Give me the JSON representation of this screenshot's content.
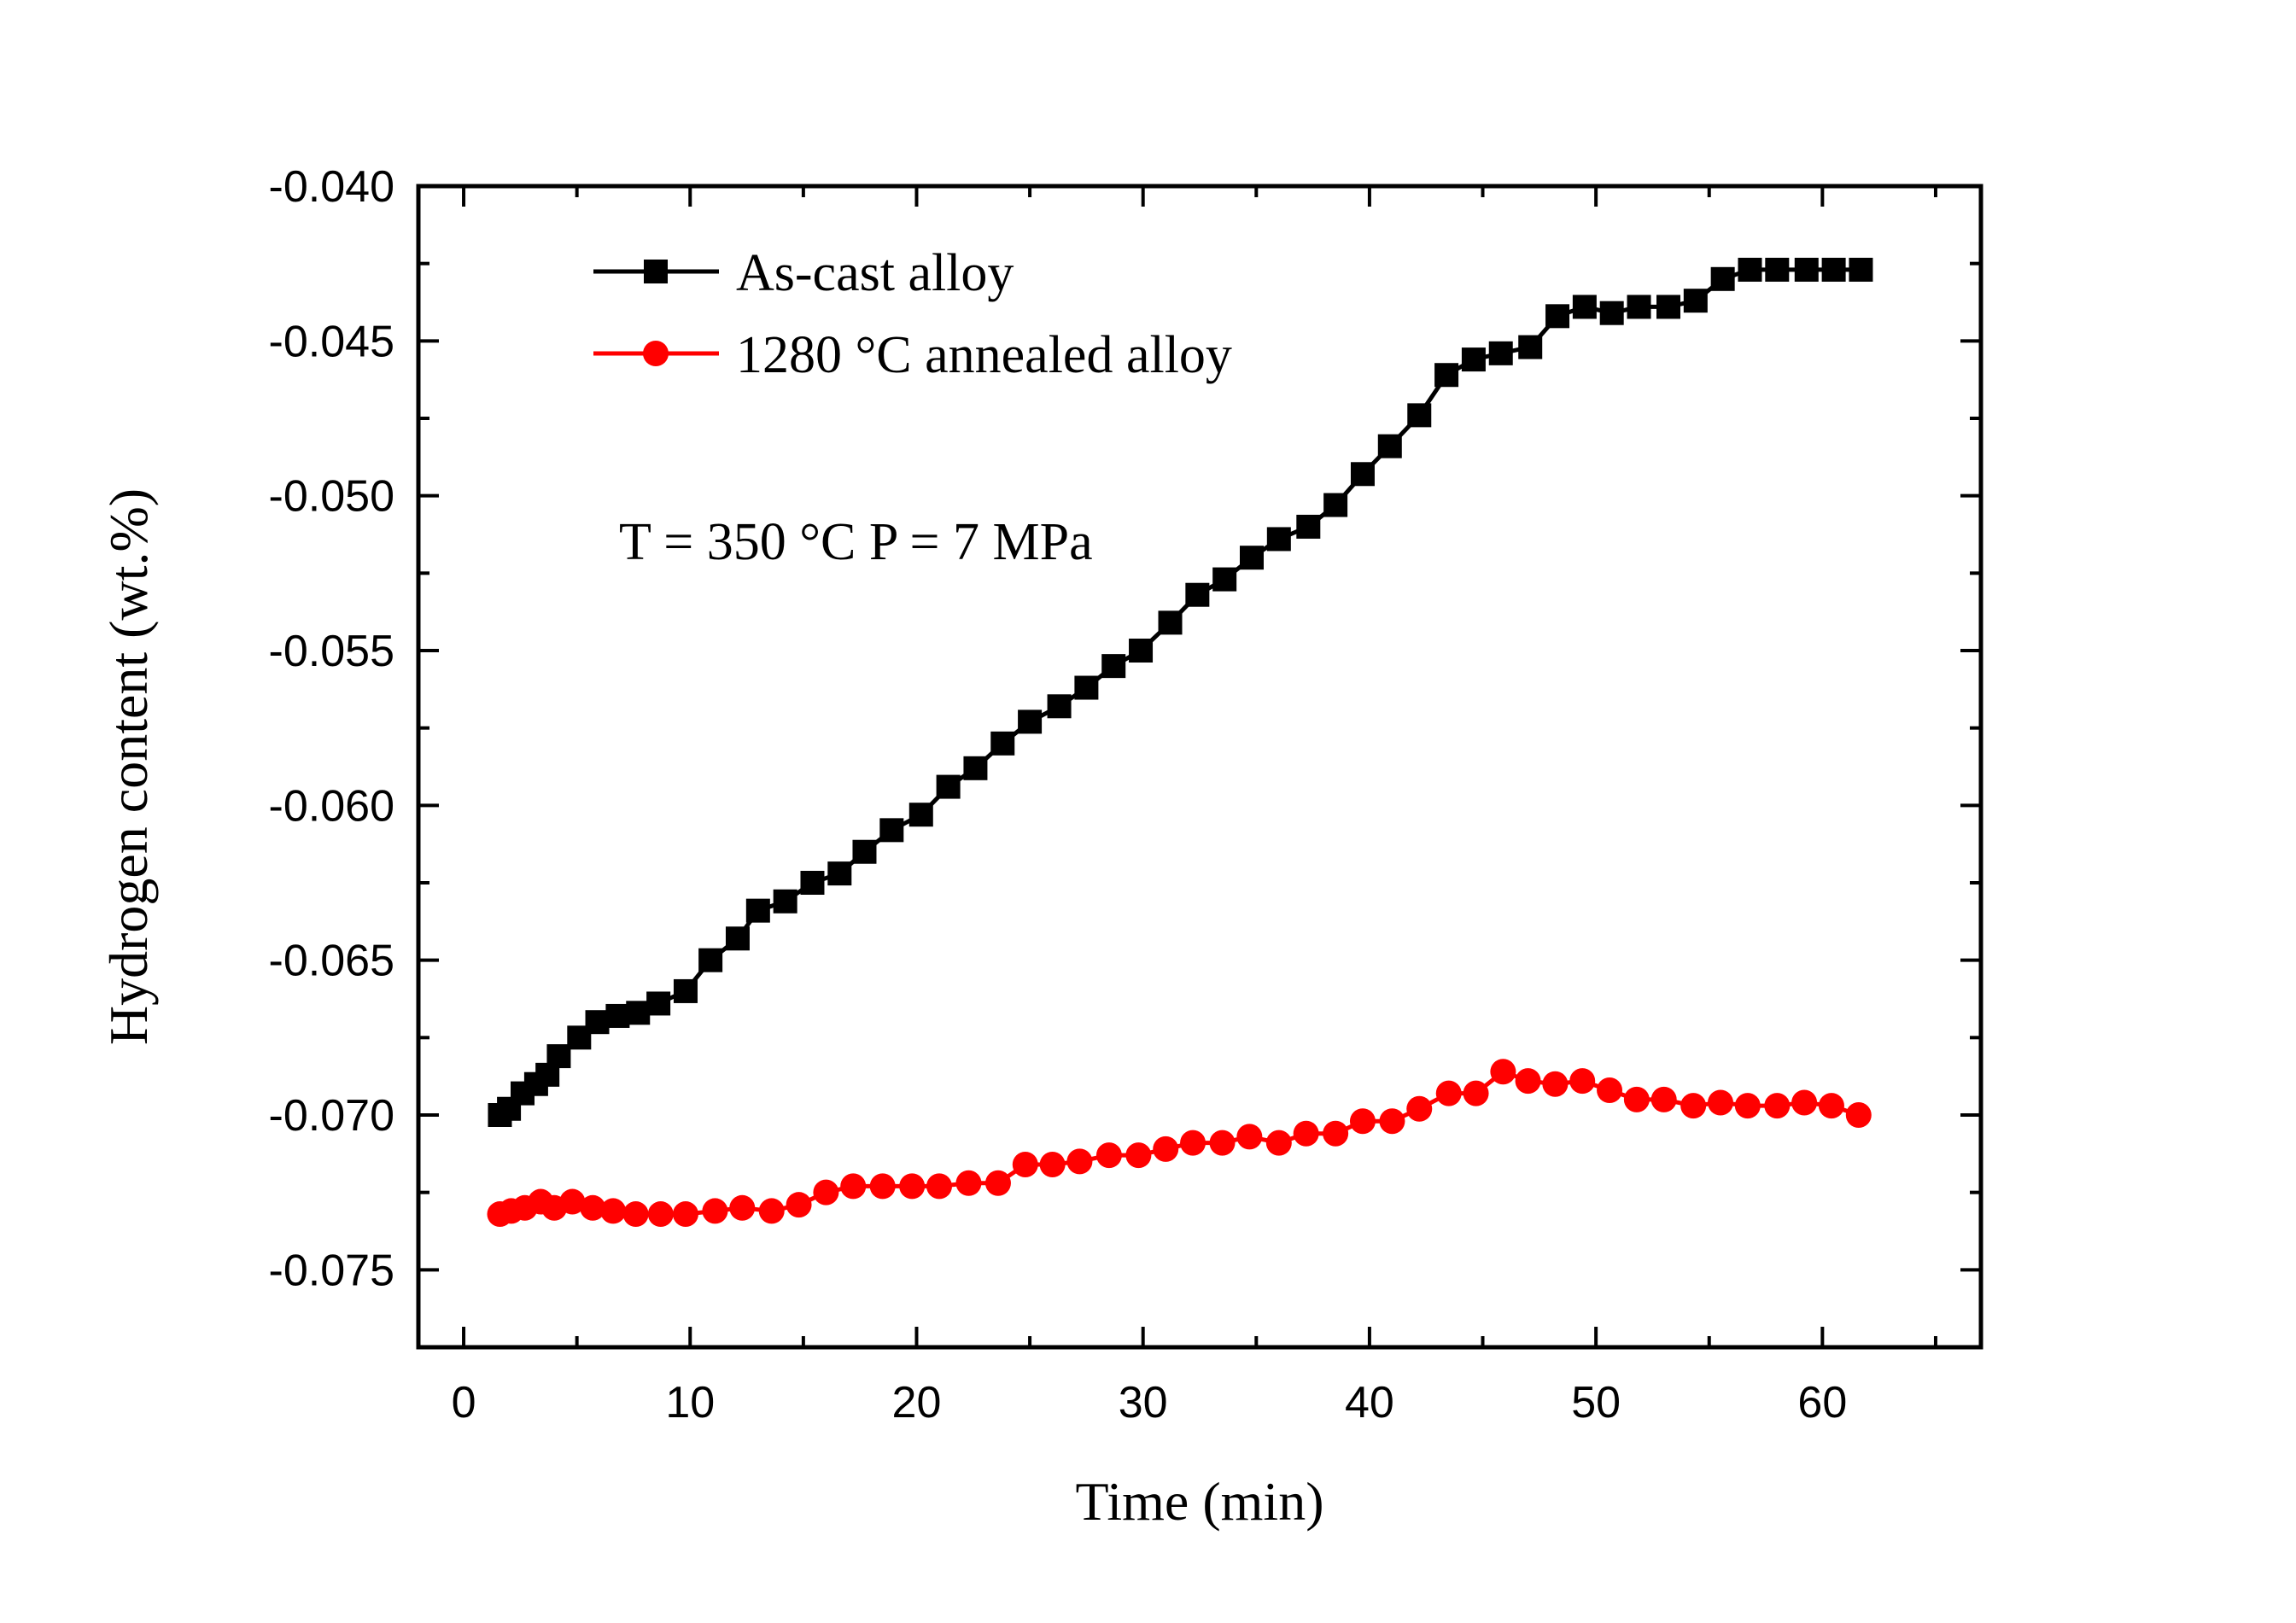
{
  "chart_data": {
    "type": "line",
    "title": "",
    "xlabel": "Time (min)",
    "ylabel": "Hydrogen content (wt.%)",
    "xlim": [
      -2,
      67
    ],
    "ylim": [
      -0.0775,
      -0.04
    ],
    "xticks": [
      0,
      10,
      20,
      30,
      40,
      50,
      60
    ],
    "xtick_labels": [
      "0",
      "10",
      "20",
      "30",
      "40",
      "50",
      "60"
    ],
    "yticks": [
      -0.075,
      -0.07,
      -0.065,
      -0.06,
      -0.055,
      -0.05,
      -0.045,
      -0.04
    ],
    "ytick_labels": [
      "-0.075",
      "-0.070",
      "-0.065",
      "-0.060",
      "-0.055",
      "-0.050",
      "-0.045",
      "-0.040"
    ],
    "grid": false,
    "legend_position": "top-left",
    "annotation": "T = 350 °C   P = 7 MPa",
    "series": [
      {
        "name": "As-cast alloy",
        "color": "#000000",
        "marker": "square",
        "x": [
          1.6,
          2.0,
          2.6,
          3.2,
          3.7,
          4.2,
          5.1,
          5.9,
          6.8,
          7.7,
          8.6,
          9.8,
          10.9,
          12.1,
          13.0,
          14.2,
          15.4,
          16.6,
          17.7,
          18.9,
          20.2,
          21.4,
          22.6,
          23.8,
          25.0,
          26.3,
          27.5,
          28.7,
          29.9,
          31.2,
          32.4,
          33.6,
          34.8,
          36.0,
          37.3,
          38.5,
          39.7,
          40.9,
          42.2,
          43.4,
          44.6,
          45.8,
          47.1,
          48.3,
          49.5,
          50.7,
          51.9,
          53.2,
          54.4,
          55.6,
          56.8,
          58.0,
          59.3,
          60.5,
          61.7
        ],
        "y": [
          -0.07,
          -0.0698,
          -0.0693,
          -0.069,
          -0.0687,
          -0.0681,
          -0.0675,
          -0.067,
          -0.0668,
          -0.0667,
          -0.0664,
          -0.066,
          -0.065,
          -0.0643,
          -0.0634,
          -0.0631,
          -0.0625,
          -0.0622,
          -0.0615,
          -0.0608,
          -0.0603,
          -0.0594,
          -0.0588,
          -0.058,
          -0.0573,
          -0.0568,
          -0.0562,
          -0.0555,
          -0.055,
          -0.0541,
          -0.0532,
          -0.0527,
          -0.052,
          -0.0514,
          -0.051,
          -0.0503,
          -0.0493,
          -0.0484,
          -0.0474,
          -0.0461,
          -0.0456,
          -0.0454,
          -0.0452,
          -0.0442,
          -0.0439,
          -0.0441,
          -0.0439,
          -0.0439,
          -0.0437,
          -0.043,
          -0.0427,
          -0.0427,
          -0.0427,
          -0.0427,
          -0.0427
        ]
      },
      {
        "name": "1280 °C annealed alloy",
        "color": "#ff0000",
        "marker": "circle",
        "x": [
          1.6,
          2.1,
          2.7,
          3.4,
          4.0,
          4.8,
          5.7,
          6.6,
          7.6,
          8.7,
          9.8,
          11.1,
          12.3,
          13.6,
          14.8,
          16.0,
          17.2,
          18.5,
          19.8,
          21.0,
          22.3,
          23.6,
          24.8,
          26.0,
          27.2,
          28.5,
          29.8,
          31.0,
          32.2,
          33.5,
          34.7,
          36.0,
          37.2,
          38.5,
          39.7,
          41.0,
          42.2,
          43.5,
          44.7,
          45.9,
          47.0,
          48.2,
          49.4,
          50.6,
          51.8,
          53.0,
          54.3,
          55.5,
          56.7,
          58.0,
          59.2,
          60.4,
          61.6
        ],
        "y": [
          -0.0732,
          -0.0731,
          -0.073,
          -0.0728,
          -0.073,
          -0.0728,
          -0.073,
          -0.0731,
          -0.0732,
          -0.0732,
          -0.0732,
          -0.0731,
          -0.073,
          -0.0731,
          -0.0729,
          -0.0725,
          -0.0723,
          -0.0723,
          -0.0723,
          -0.0723,
          -0.0722,
          -0.0722,
          -0.0716,
          -0.0716,
          -0.0715,
          -0.0713,
          -0.0713,
          -0.0711,
          -0.0709,
          -0.0709,
          -0.0707,
          -0.0709,
          -0.0706,
          -0.0706,
          -0.0702,
          -0.0702,
          -0.0698,
          -0.0693,
          -0.0693,
          -0.0686,
          -0.0689,
          -0.069,
          -0.0689,
          -0.0692,
          -0.0695,
          -0.0695,
          -0.0697,
          -0.0696,
          -0.0697,
          -0.0697,
          -0.0696,
          -0.0697,
          -0.07
        ]
      }
    ]
  }
}
